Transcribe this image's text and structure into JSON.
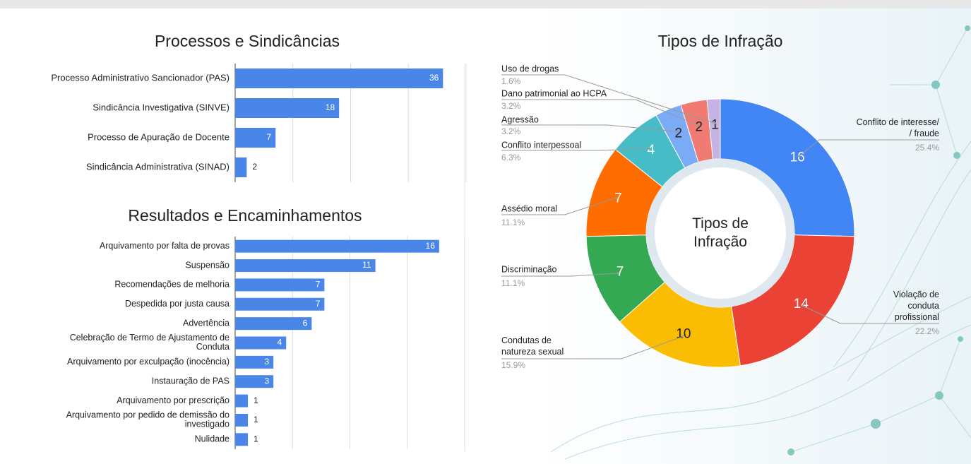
{
  "chart_data": [
    {
      "type": "bar",
      "orientation": "horizontal",
      "title": "Processos e Sindicâncias",
      "categories": [
        "Processo Administrativo Sancionador (PAS)",
        "Sindicância Investigativa (SINVE)",
        "Processo de Apuração de Docente",
        "Sindicância Administrativa (SINAD)"
      ],
      "values": [
        36,
        18,
        7,
        2
      ],
      "color": "#4a86e8",
      "xlim": [
        0,
        40
      ],
      "xticks": [
        0,
        10,
        20,
        30,
        40
      ],
      "grid": true
    },
    {
      "type": "bar",
      "orientation": "horizontal",
      "title": "Resultados e Encaminhamentos",
      "categories": [
        "Arquivamento por falta de provas",
        "Suspensão",
        "Recomendações de melhoria",
        "Despedida por justa causa",
        "Advertência",
        "Celebração de Termo de Ajustamento de\nConduta",
        "Arquivamento por exculpação (inocência)",
        "Instauração de PAS",
        "Arquivamento por prescrição",
        "Arquivamento por pedido de demissão do\ninvestigado",
        "Nulidade"
      ],
      "values": [
        16,
        11,
        7,
        7,
        6,
        4,
        3,
        3,
        1,
        1,
        1
      ],
      "color": "#4a86e8",
      "xlim": [
        0,
        18
      ],
      "xticks": [
        0,
        4.5,
        9,
        13.5,
        18
      ],
      "grid": true
    },
    {
      "type": "pie",
      "donut": true,
      "title": "Tipos de Infração",
      "center_label": "Tipos de\nInfração",
      "categories": [
        "Conflito de interesse/\n/ fraude",
        "Violação de\nconduta\nprofissional",
        "Condutas de\nnatureza sexual",
        "Discriminação",
        "Assédio moral",
        "Conflito interpessoal",
        "Agressão",
        "Dano patrimonial ao HCPA",
        "Uso de drogas"
      ],
      "values": [
        16,
        14,
        10,
        7,
        7,
        4,
        2,
        2,
        1
      ],
      "percent_labels": [
        "25.4%",
        "22.2%",
        "15.9%",
        "11.1%",
        "11.1%",
        "6.3%",
        "3.2%",
        "3.2%",
        "1.6%"
      ],
      "colors": [
        "#4285f4",
        "#ea4335",
        "#fbbc04",
        "#34a853",
        "#ff6d01",
        "#46bdc6",
        "#7baaf7",
        "#f07b72",
        "#c5b3e6"
      ]
    }
  ]
}
